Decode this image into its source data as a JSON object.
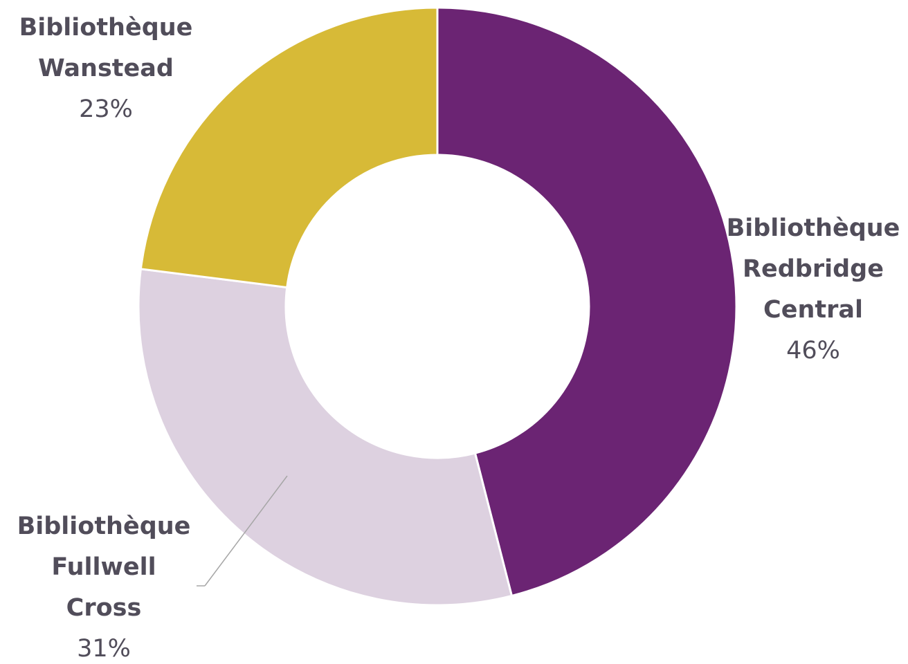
{
  "chart_data": {
    "type": "pie",
    "donut": true,
    "legend": "none",
    "slices": [
      {
        "label_lines": [
          "Bibliothèque",
          "Redbridge",
          "Central"
        ],
        "value": 46,
        "value_label": "46%",
        "color": "#6b2473"
      },
      {
        "label_lines": [
          "Bibliothèque",
          "Fullwell",
          "Cross"
        ],
        "value": 31,
        "value_label": "31%",
        "color": "#ddd1e0"
      },
      {
        "label_lines": [
          "Bibliothèque",
          "Wanstead"
        ],
        "value": 23,
        "value_label": "23%",
        "color": "#d7ba37"
      }
    ],
    "label_color": "#514d5a",
    "leader_line_color": "#a6a6a6"
  }
}
